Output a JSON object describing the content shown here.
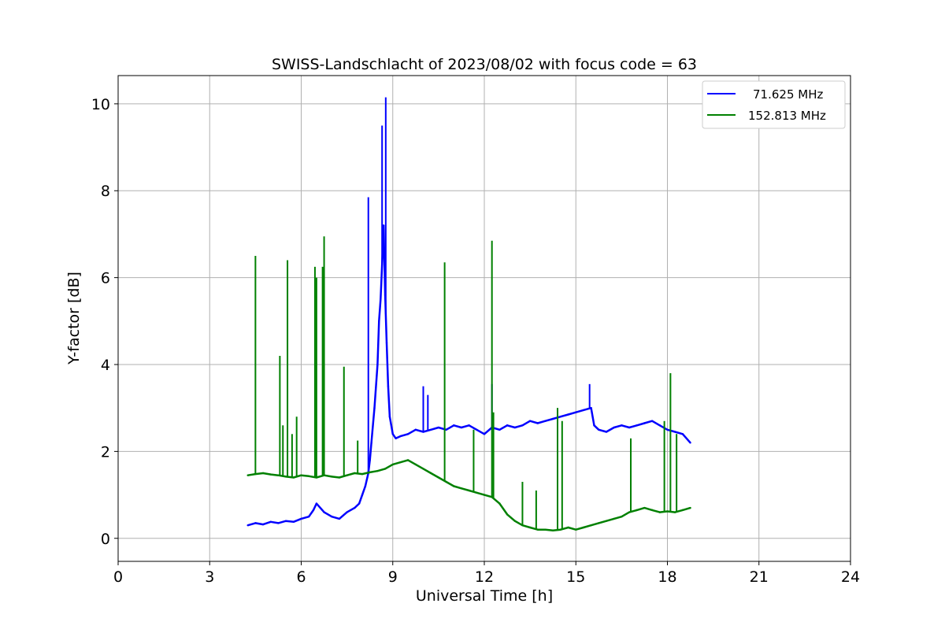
{
  "chart_data": {
    "type": "line",
    "title": "SWISS-Landschlacht of 2023/08/02 with focus code = 63",
    "xlabel": "Universal Time [h]",
    "ylabel": "Y-factor [dB]",
    "xlim": [
      0,
      24
    ],
    "ylim": [
      -0.53,
      10.65
    ],
    "xticks": [
      0,
      3,
      6,
      9,
      12,
      15,
      18,
      21,
      24
    ],
    "yticks": [
      0,
      2,
      4,
      6,
      8,
      10
    ],
    "xtick_labels": [
      "0",
      "3",
      "6",
      "9",
      "12",
      "15",
      "18",
      "21",
      "24"
    ],
    "ytick_labels": [
      "0",
      "2",
      "4",
      "6",
      "8",
      "10"
    ],
    "grid": true,
    "legend_position": "top-right",
    "series": [
      {
        "name": "71.625 MHz",
        "color": "#0000ff",
        "x": [
          4.25,
          4.5,
          4.75,
          5.0,
          5.25,
          5.5,
          5.75,
          6.0,
          6.25,
          6.4,
          6.5,
          6.75,
          7.0,
          7.25,
          7.5,
          7.75,
          7.9,
          8.0,
          8.1,
          8.2,
          8.25,
          8.3,
          8.4,
          8.5,
          8.55,
          8.6,
          8.65,
          8.7,
          8.75,
          8.8,
          8.85,
          8.9,
          9.0,
          9.1,
          9.25,
          9.5,
          9.75,
          10.0,
          10.25,
          10.5,
          10.75,
          11.0,
          11.25,
          11.5,
          11.75,
          12.0,
          12.25,
          12.5,
          12.75,
          13.0,
          13.25,
          13.5,
          13.75,
          14.0,
          14.25,
          14.5,
          14.75,
          15.0,
          15.25,
          15.5,
          15.6,
          15.75,
          16.0,
          16.25,
          16.5,
          16.75,
          17.0,
          17.25,
          17.5,
          17.75,
          18.0,
          18.25,
          18.5,
          18.75
        ],
        "y": [
          0.3,
          0.35,
          0.32,
          0.38,
          0.35,
          0.4,
          0.38,
          0.45,
          0.5,
          0.65,
          0.8,
          0.6,
          0.5,
          0.45,
          0.6,
          0.7,
          0.8,
          1.0,
          1.2,
          1.5,
          1.8,
          2.2,
          3.0,
          4.0,
          5.0,
          5.5,
          6.3,
          7.2,
          5.6,
          4.5,
          3.5,
          2.8,
          2.4,
          2.3,
          2.35,
          2.4,
          2.5,
          2.45,
          2.5,
          2.55,
          2.5,
          2.6,
          2.55,
          2.6,
          2.5,
          2.4,
          2.55,
          2.5,
          2.6,
          2.55,
          2.6,
          2.7,
          2.65,
          2.7,
          2.75,
          2.8,
          2.85,
          2.9,
          2.95,
          3.0,
          2.6,
          2.5,
          2.45,
          2.55,
          2.6,
          2.55,
          2.6,
          2.65,
          2.7,
          2.6,
          2.5,
          2.45,
          2.4,
          2.2
        ],
        "spikes": [
          {
            "x": 8.2,
            "y": 7.85
          },
          {
            "x": 8.65,
            "y": 9.5
          },
          {
            "x": 8.77,
            "y": 10.15
          },
          {
            "x": 10.0,
            "y": 3.5
          },
          {
            "x": 10.15,
            "y": 3.3
          },
          {
            "x": 12.25,
            "y": 3.55
          },
          {
            "x": 15.45,
            "y": 3.55
          }
        ]
      },
      {
        "name": "152.813 MHz",
        "color": "#008000",
        "x": [
          4.25,
          4.5,
          4.75,
          5.0,
          5.25,
          5.5,
          5.75,
          6.0,
          6.25,
          6.5,
          6.75,
          7.0,
          7.25,
          7.5,
          7.75,
          8.0,
          8.25,
          8.5,
          8.75,
          9.0,
          9.25,
          9.5,
          9.75,
          10.0,
          10.25,
          10.5,
          10.75,
          11.0,
          11.25,
          11.5,
          11.75,
          12.0,
          12.25,
          12.5,
          12.75,
          13.0,
          13.25,
          13.5,
          13.75,
          14.0,
          14.25,
          14.5,
          14.75,
          15.0,
          15.25,
          15.5,
          15.75,
          16.0,
          16.25,
          16.5,
          16.75,
          17.0,
          17.25,
          17.5,
          17.75,
          18.0,
          18.25,
          18.5,
          18.75
        ],
        "y": [
          1.45,
          1.48,
          1.5,
          1.47,
          1.45,
          1.42,
          1.4,
          1.45,
          1.43,
          1.4,
          1.45,
          1.42,
          1.4,
          1.45,
          1.5,
          1.48,
          1.52,
          1.55,
          1.6,
          1.7,
          1.75,
          1.8,
          1.7,
          1.6,
          1.5,
          1.4,
          1.3,
          1.2,
          1.15,
          1.1,
          1.05,
          1.0,
          0.95,
          0.8,
          0.55,
          0.4,
          0.3,
          0.25,
          0.2,
          0.2,
          0.18,
          0.2,
          0.25,
          0.2,
          0.25,
          0.3,
          0.35,
          0.4,
          0.45,
          0.5,
          0.6,
          0.65,
          0.7,
          0.65,
          0.6,
          0.62,
          0.6,
          0.65,
          0.7
        ],
        "spikes": [
          {
            "x": 4.5,
            "y": 6.5
          },
          {
            "x": 5.3,
            "y": 4.2
          },
          {
            "x": 5.4,
            "y": 2.6
          },
          {
            "x": 5.55,
            "y": 6.4
          },
          {
            "x": 5.7,
            "y": 2.4
          },
          {
            "x": 5.85,
            "y": 2.8
          },
          {
            "x": 6.45,
            "y": 6.25
          },
          {
            "x": 6.5,
            "y": 6.0
          },
          {
            "x": 6.7,
            "y": 6.25
          },
          {
            "x": 6.75,
            "y": 6.95
          },
          {
            "x": 7.4,
            "y": 3.95
          },
          {
            "x": 7.85,
            "y": 2.25
          },
          {
            "x": 10.7,
            "y": 6.35
          },
          {
            "x": 11.65,
            "y": 2.5
          },
          {
            "x": 12.25,
            "y": 6.85
          },
          {
            "x": 12.3,
            "y": 2.9
          },
          {
            "x": 13.25,
            "y": 1.3
          },
          {
            "x": 13.7,
            "y": 1.1
          },
          {
            "x": 14.4,
            "y": 3.0
          },
          {
            "x": 14.55,
            "y": 2.7
          },
          {
            "x": 16.8,
            "y": 2.3
          },
          {
            "x": 17.9,
            "y": 2.7
          },
          {
            "x": 18.1,
            "y": 3.8
          },
          {
            "x": 18.3,
            "y": 2.4
          }
        ]
      }
    ]
  }
}
